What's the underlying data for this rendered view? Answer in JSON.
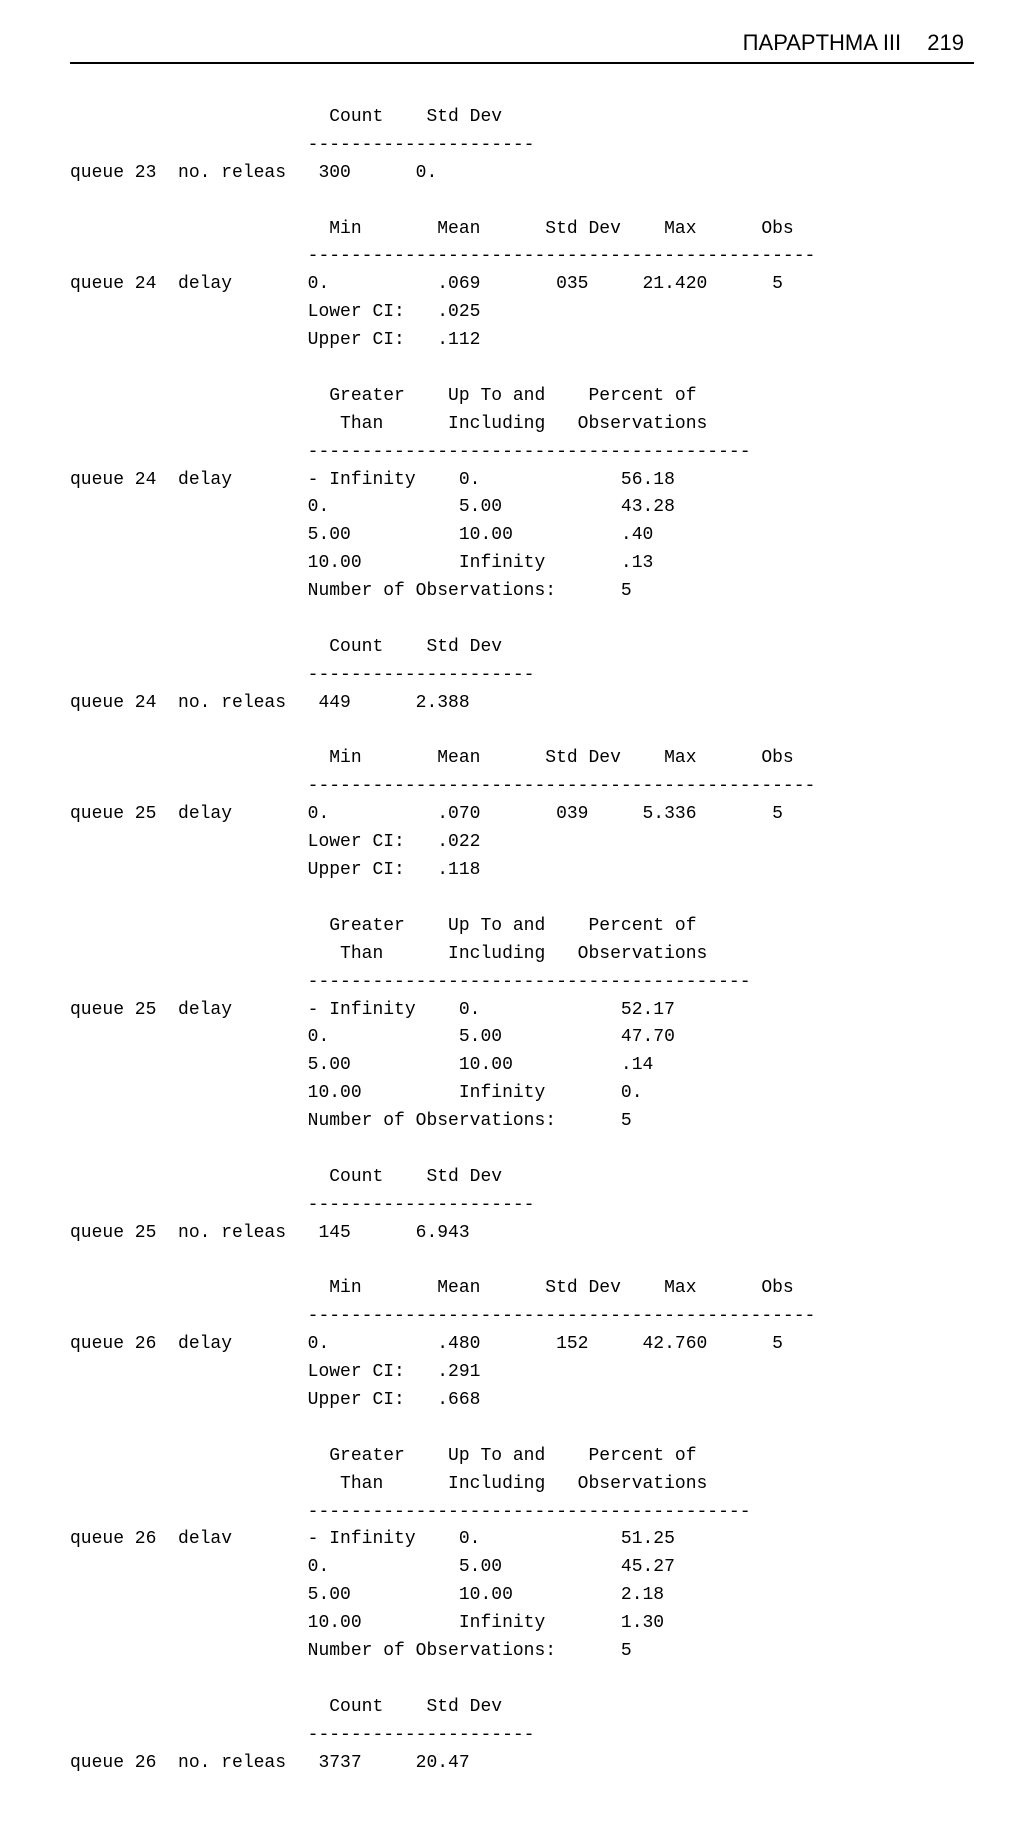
{
  "header": {
    "title": "ΠΑΡΑΡΤΗΜΑ III",
    "page_number": "219"
  },
  "font": {
    "mono_family": "Courier New",
    "mono_size_pt": 14,
    "header_family": "Arial",
    "header_size_pt": 16
  },
  "colors": {
    "text": "#000000",
    "background": "#ffffff",
    "rule": "#000000"
  },
  "blocks": [
    {
      "type": "count_stddev",
      "label1": "queue 23",
      "label2": "no. releas",
      "count": "300",
      "stddev": "0."
    },
    {
      "type": "stats_summary",
      "label1": "queue 24",
      "label2": "delay",
      "min": "0.",
      "mean": ".069",
      "stddev": "035",
      "max": "21.420",
      "obs": "5",
      "lower_ci": ".025",
      "upper_ci": ".112"
    },
    {
      "type": "histogram",
      "label1": "queue 24",
      "label2": "delay",
      "rows": [
        {
          "greater_than": "- Infinity",
          "up_to": "0.",
          "percent": "56.18"
        },
        {
          "greater_than": "0.",
          "up_to": "5.00",
          "percent": "43.28"
        },
        {
          "greater_than": "5.00",
          "up_to": "10.00",
          "percent": ".40"
        },
        {
          "greater_than": "10.00",
          "up_to": "Infinity",
          "percent": ".13"
        }
      ],
      "num_obs": "5"
    },
    {
      "type": "count_stddev",
      "label1": "queue 24",
      "label2": "no. releas",
      "count": "449",
      "stddev": "2.388"
    },
    {
      "type": "stats_summary",
      "label1": "queue 25",
      "label2": "delay",
      "min": "0.",
      "mean": ".070",
      "stddev": "039",
      "max": "5.336",
      "obs": "5",
      "lower_ci": ".022",
      "upper_ci": ".118"
    },
    {
      "type": "histogram",
      "label1": "queue 25",
      "label2": "delay",
      "rows": [
        {
          "greater_than": "- Infinity",
          "up_to": "0.",
          "percent": "52.17"
        },
        {
          "greater_than": "0.",
          "up_to": "5.00",
          "percent": "47.70"
        },
        {
          "greater_than": "5.00",
          "up_to": "10.00",
          "percent": ".14"
        },
        {
          "greater_than": "10.00",
          "up_to": "Infinity",
          "percent": "0."
        }
      ],
      "num_obs": "5"
    },
    {
      "type": "count_stddev",
      "label1": "queue 25",
      "label2": "no. releas",
      "count": "145",
      "stddev": "6.943"
    },
    {
      "type": "stats_summary",
      "label1": "queue 26",
      "label2": "delay",
      "min": "0.",
      "mean": ".480",
      "stddev": "152",
      "max": "42.760",
      "obs": "5",
      "lower_ci": ".291",
      "upper_ci": ".668"
    },
    {
      "type": "histogram",
      "label1": "queue 26",
      "label2": "delav",
      "rows": [
        {
          "greater_than": "- Infinity",
          "up_to": "0.",
          "percent": "51.25"
        },
        {
          "greater_than": "0.",
          "up_to": "5.00",
          "percent": "45.27"
        },
        {
          "greater_than": "5.00",
          "up_to": "10.00",
          "percent": "2.18"
        },
        {
          "greater_than": "10.00",
          "up_to": "Infinity",
          "percent": "1.30"
        }
      ],
      "num_obs": "5"
    },
    {
      "type": "count_stddev",
      "label1": "queue 26",
      "label2": "no. releas",
      "count": "3737",
      "stddev": "20.47"
    }
  ]
}
